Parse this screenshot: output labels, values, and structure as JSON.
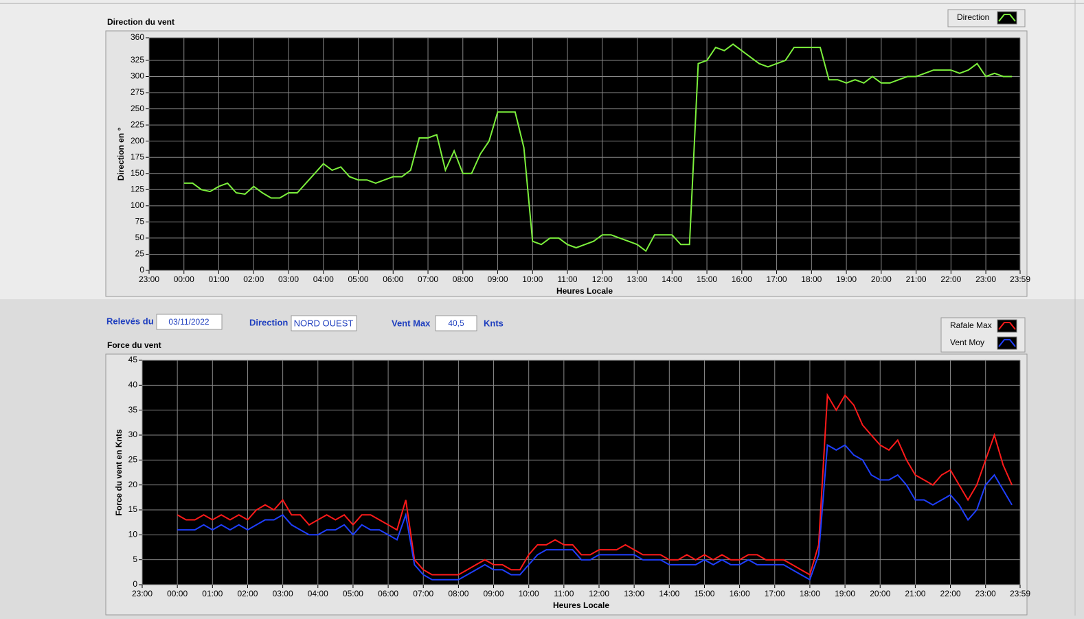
{
  "chart_data": [
    {
      "type": "line",
      "title": "Direction du vent",
      "x_label": "Heures Locale",
      "y_label": "Direction en °",
      "grid": true,
      "legend": "top-right",
      "xlim": [
        -1,
        23.9833
      ],
      "ylim": [
        0,
        360
      ],
      "xticks": [
        {
          "value": -1,
          "label": "23:00"
        },
        {
          "value": 0,
          "label": "00:00"
        },
        {
          "value": 1,
          "label": "01:00"
        },
        {
          "value": 2,
          "label": "02:00"
        },
        {
          "value": 3,
          "label": "03:00"
        },
        {
          "value": 4,
          "label": "04:00"
        },
        {
          "value": 5,
          "label": "05:00"
        },
        {
          "value": 6,
          "label": "06:00"
        },
        {
          "value": 7,
          "label": "07:00"
        },
        {
          "value": 8,
          "label": "08:00"
        },
        {
          "value": 9,
          "label": "09:00"
        },
        {
          "value": 10,
          "label": "10:00"
        },
        {
          "value": 11,
          "label": "11:00"
        },
        {
          "value": 12,
          "label": "12:00"
        },
        {
          "value": 13,
          "label": "13:00"
        },
        {
          "value": 14,
          "label": "14:00"
        },
        {
          "value": 15,
          "label": "15:00"
        },
        {
          "value": 16,
          "label": "16:00"
        },
        {
          "value": 17,
          "label": "17:00"
        },
        {
          "value": 18,
          "label": "18:00"
        },
        {
          "value": 19,
          "label": "19:00"
        },
        {
          "value": 20,
          "label": "20:00"
        },
        {
          "value": 21,
          "label": "21:00"
        },
        {
          "value": 22,
          "label": "22:00"
        },
        {
          "value": 23,
          "label": "23:00"
        },
        {
          "value": 23.9833,
          "label": "23:59"
        }
      ],
      "yticks": [
        0,
        25,
        50,
        75,
        100,
        125,
        150,
        175,
        200,
        225,
        250,
        275,
        300,
        325,
        360
      ],
      "x": [
        0,
        0.25,
        0.5,
        0.75,
        1,
        1.25,
        1.5,
        1.75,
        2,
        2.25,
        2.5,
        2.75,
        3,
        3.25,
        3.5,
        3.75,
        4,
        4.25,
        4.5,
        4.75,
        5,
        5.25,
        5.5,
        5.75,
        6,
        6.25,
        6.5,
        6.75,
        7,
        7.25,
        7.5,
        7.75,
        8,
        8.25,
        8.5,
        8.75,
        9,
        9.25,
        9.5,
        9.75,
        10,
        10.25,
        10.5,
        10.75,
        11,
        11.25,
        11.5,
        11.75,
        12,
        12.25,
        12.5,
        12.75,
        13,
        13.25,
        13.5,
        13.75,
        14,
        14.25,
        14.5,
        14.75,
        15,
        15.25,
        15.5,
        15.75,
        16,
        16.25,
        16.5,
        16.75,
        17,
        17.25,
        17.5,
        17.75,
        18,
        18.25,
        18.5,
        18.75,
        19,
        19.25,
        19.5,
        19.75,
        20,
        20.25,
        20.5,
        20.75,
        21,
        21.25,
        21.5,
        21.75,
        22,
        22.25,
        22.5,
        22.75,
        23,
        23.25,
        23.5,
        23.75
      ],
      "series": [
        {
          "name": "Direction",
          "color": "#7cf03c",
          "values": [
            135,
            135,
            125,
            122,
            130,
            135,
            120,
            118,
            130,
            120,
            112,
            112,
            120,
            120,
            135,
            150,
            165,
            155,
            160,
            145,
            140,
            140,
            135,
            140,
            145,
            145,
            155,
            205,
            205,
            210,
            155,
            185,
            150,
            150,
            180,
            200,
            245,
            245,
            245,
            190,
            45,
            40,
            50,
            50,
            40,
            35,
            40,
            45,
            55,
            55,
            50,
            45,
            40,
            30,
            55,
            55,
            55,
            40,
            40,
            320,
            325,
            345,
            340,
            350,
            340,
            330,
            320,
            315,
            320,
            325,
            345,
            345,
            345,
            345,
            295,
            295,
            290,
            295,
            290,
            300,
            290,
            290,
            295,
            300,
            300,
            305,
            310,
            310,
            310,
            305,
            310,
            320,
            300,
            305,
            300,
            300
          ]
        }
      ]
    },
    {
      "type": "line",
      "title": "Force du vent",
      "x_label": "Heures Locale",
      "y_label": "Force du vent en Knts",
      "grid": true,
      "legend": "top-right",
      "xlim": [
        -1,
        23.9833
      ],
      "ylim": [
        0,
        45
      ],
      "xticks": [
        {
          "value": -1,
          "label": "23:00"
        },
        {
          "value": 0,
          "label": "00:00"
        },
        {
          "value": 1,
          "label": "01:00"
        },
        {
          "value": 2,
          "label": "02:00"
        },
        {
          "value": 3,
          "label": "03:00"
        },
        {
          "value": 4,
          "label": "04:00"
        },
        {
          "value": 5,
          "label": "05:00"
        },
        {
          "value": 6,
          "label": "06:00"
        },
        {
          "value": 7,
          "label": "07:00"
        },
        {
          "value": 8,
          "label": "08:00"
        },
        {
          "value": 9,
          "label": "09:00"
        },
        {
          "value": 10,
          "label": "10:00"
        },
        {
          "value": 11,
          "label": "11:00"
        },
        {
          "value": 12,
          "label": "12:00"
        },
        {
          "value": 13,
          "label": "13:00"
        },
        {
          "value": 14,
          "label": "14:00"
        },
        {
          "value": 15,
          "label": "15:00"
        },
        {
          "value": 16,
          "label": "16:00"
        },
        {
          "value": 17,
          "label": "17:00"
        },
        {
          "value": 18,
          "label": "18:00"
        },
        {
          "value": 19,
          "label": "19:00"
        },
        {
          "value": 20,
          "label": "20:00"
        },
        {
          "value": 21,
          "label": "21:00"
        },
        {
          "value": 22,
          "label": "22:00"
        },
        {
          "value": 23,
          "label": "23:00"
        },
        {
          "value": 23.9833,
          "label": "23:59"
        }
      ],
      "yticks": [
        0,
        5,
        10,
        15,
        20,
        25,
        30,
        35,
        40,
        45
      ],
      "x": [
        0,
        0.25,
        0.5,
        0.75,
        1,
        1.25,
        1.5,
        1.75,
        2,
        2.25,
        2.5,
        2.75,
        3,
        3.25,
        3.5,
        3.75,
        4,
        4.25,
        4.5,
        4.75,
        5,
        5.25,
        5.5,
        5.75,
        6,
        6.25,
        6.5,
        6.75,
        7,
        7.25,
        7.5,
        7.75,
        8,
        8.25,
        8.5,
        8.75,
        9,
        9.25,
        9.5,
        9.75,
        10,
        10.25,
        10.5,
        10.75,
        11,
        11.25,
        11.5,
        11.75,
        12,
        12.25,
        12.5,
        12.75,
        13,
        13.25,
        13.5,
        13.75,
        14,
        14.25,
        14.5,
        14.75,
        15,
        15.25,
        15.5,
        15.75,
        16,
        16.25,
        16.5,
        16.75,
        17,
        17.25,
        17.5,
        17.75,
        18,
        18.25,
        18.5,
        18.75,
        19,
        19.25,
        19.5,
        19.75,
        20,
        20.25,
        20.5,
        20.75,
        21,
        21.25,
        21.5,
        21.75,
        22,
        22.25,
        22.5,
        22.75,
        23,
        23.25,
        23.5,
        23.75
      ],
      "series": [
        {
          "name": "Rafale Max",
          "color": "#ff1a1a",
          "values": [
            14,
            13,
            13,
            14,
            13,
            14,
            13,
            14,
            13,
            15,
            16,
            15,
            17,
            14,
            14,
            12,
            13,
            14,
            13,
            14,
            12,
            14,
            14,
            13,
            12,
            11,
            17,
            5,
            3,
            2,
            2,
            2,
            2,
            3,
            4,
            5,
            4,
            4,
            3,
            3,
            6,
            8,
            8,
            9,
            8,
            8,
            6,
            6,
            7,
            7,
            7,
            8,
            7,
            6,
            6,
            6,
            5,
            5,
            6,
            5,
            6,
            5,
            6,
            5,
            5,
            6,
            6,
            5,
            5,
            5,
            4,
            3,
            2,
            8,
            38,
            35,
            38,
            36,
            32,
            30,
            28,
            27,
            29,
            25,
            22,
            21,
            20,
            22,
            23,
            20,
            17,
            20,
            25,
            30,
            24,
            20
          ]
        },
        {
          "name": "Vent Moy",
          "color": "#1f3fff",
          "values": [
            11,
            11,
            11,
            12,
            11,
            12,
            11,
            12,
            11,
            12,
            13,
            13,
            14,
            12,
            11,
            10,
            10,
            11,
            11,
            12,
            10,
            12,
            11,
            11,
            10,
            9,
            14,
            4,
            2,
            1,
            1,
            1,
            1,
            2,
            3,
            4,
            3,
            3,
            2,
            2,
            4,
            6,
            7,
            7,
            7,
            7,
            5,
            5,
            6,
            6,
            6,
            6,
            6,
            5,
            5,
            5,
            4,
            4,
            4,
            4,
            5,
            4,
            5,
            4,
            4,
            5,
            4,
            4,
            4,
            4,
            3,
            2,
            1,
            6,
            28,
            27,
            28,
            26,
            25,
            22,
            21,
            21,
            22,
            20,
            17,
            17,
            16,
            17,
            18,
            16,
            13,
            15,
            20,
            22,
            19,
            16
          ]
        }
      ]
    }
  ],
  "form": {
    "date_label": "Relevés du",
    "date": "03/11/2022",
    "direction_label": "Direction",
    "direction": "NORD OUEST",
    "max_label": "Vent Max",
    "max": "40,5",
    "unit": "Knts"
  }
}
